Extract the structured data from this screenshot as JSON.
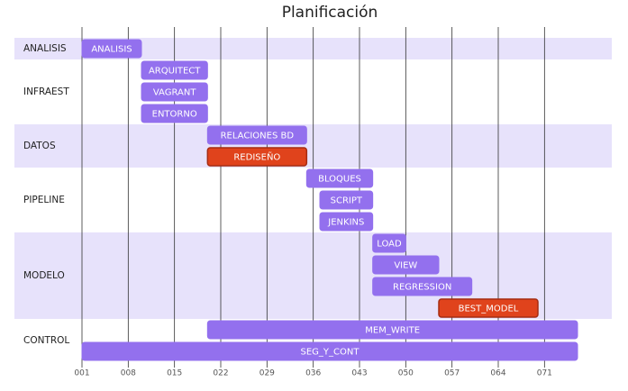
{
  "chart_data": {
    "type": "gantt",
    "title": "Planificación",
    "xlim": [
      1,
      76
    ],
    "xticks": [
      {
        "value": 1,
        "label": "001"
      },
      {
        "value": 8,
        "label": "008"
      },
      {
        "value": 15,
        "label": "015"
      },
      {
        "value": 22,
        "label": "022"
      },
      {
        "value": 29,
        "label": "029"
      },
      {
        "value": 36,
        "label": "036"
      },
      {
        "value": 43,
        "label": "043"
      },
      {
        "value": 50,
        "label": "050"
      },
      {
        "value": 57,
        "label": "057"
      },
      {
        "value": 64,
        "label": "064"
      },
      {
        "value": 71,
        "label": "071"
      }
    ],
    "grid": true,
    "color": "#9370ee",
    "critical_color": "#e0431c",
    "critical_border": "#a52c12",
    "band_colors": [
      "#e7e2fb",
      "#ffffff"
    ],
    "sections": [
      {
        "name": "ANALISIS",
        "tasks": [
          {
            "name": "ANALISIS",
            "start": 1,
            "end": 10
          }
        ]
      },
      {
        "name": "INFRAEST",
        "tasks": [
          {
            "name": "ARQUITECT",
            "start": 10,
            "end": 20
          },
          {
            "name": "VAGRANT",
            "start": 10,
            "end": 20
          },
          {
            "name": "ENTORNO",
            "start": 10,
            "end": 20
          }
        ]
      },
      {
        "name": "DATOS",
        "tasks": [
          {
            "name": "RELACIONES BD",
            "start": 20,
            "end": 35
          },
          {
            "name": "REDISEÑO",
            "start": 20,
            "end": 35,
            "critical": true
          }
        ]
      },
      {
        "name": "PIPELINE",
        "tasks": [
          {
            "name": "BLOQUES",
            "start": 35,
            "end": 45
          },
          {
            "name": "SCRIPT",
            "start": 37,
            "end": 45
          },
          {
            "name": "JENKINS",
            "start": 37,
            "end": 45
          }
        ]
      },
      {
        "name": "MODELO",
        "tasks": [
          {
            "name": "LOAD",
            "start": 45,
            "end": 50
          },
          {
            "name": "VIEW",
            "start": 45,
            "end": 55
          },
          {
            "name": "REGRESSION",
            "start": 45,
            "end": 60
          },
          {
            "name": "BEST_MODEL",
            "start": 55,
            "end": 70,
            "critical": true
          }
        ]
      },
      {
        "name": "CONTROL",
        "tasks": [
          {
            "name": "MEM_WRITE",
            "start": 20,
            "end": 76
          },
          {
            "name": "SEG_Y_CONT",
            "start": 1,
            "end": 76
          }
        ]
      }
    ]
  }
}
